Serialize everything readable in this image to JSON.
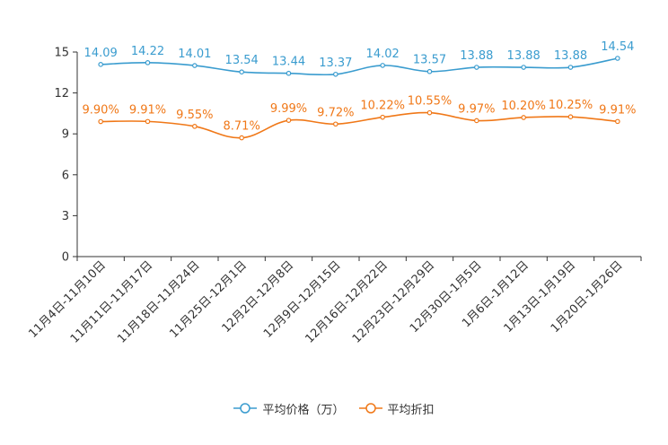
{
  "chart_data": {
    "type": "line",
    "title": "",
    "xlabel": "",
    "ylabel": "",
    "categories": [
      "11月4日-11月10日",
      "11月11日-11月17日",
      "11月18日-11月24日",
      "11月25日-12月1日",
      "12月2日-12月8日",
      "12月9日-12月15日",
      "12月16日-12月22日",
      "12月23日-12月29日",
      "12月30日-1月5日",
      "1月6日-1月12日",
      "1月13日-1月19日",
      "1月20日-1月26日"
    ],
    "ylim": [
      0,
      15
    ],
    "yticks": [
      "0",
      "3",
      "6",
      "9",
      "12",
      "15"
    ],
    "grid": false,
    "legend_position": "bottom",
    "series": [
      {
        "name": "平均价格（万）",
        "color": "#3a9ccf",
        "values": [
          14.09,
          14.22,
          14.01,
          13.54,
          13.44,
          13.37,
          14.02,
          13.57,
          13.88,
          13.88,
          13.88,
          14.54
        ],
        "labels": [
          "14.09",
          "14.22",
          "14.01",
          "13.54",
          "13.44",
          "13.37",
          "14.02",
          "13.57",
          "13.88",
          "13.88",
          "13.88",
          "14.54"
        ]
      },
      {
        "name": "平均折扣",
        "color": "#f07818",
        "values": [
          9.9,
          9.91,
          9.55,
          8.71,
          9.99,
          9.72,
          10.22,
          10.55,
          9.97,
          10.2,
          10.25,
          9.91
        ],
        "labels": [
          "9.90%",
          "9.91%",
          "9.55%",
          "8.71%",
          "9.99%",
          "9.72%",
          "10.22%",
          "10.55%",
          "9.97%",
          "10.20%",
          "10.25%",
          "9.91%"
        ]
      }
    ]
  }
}
